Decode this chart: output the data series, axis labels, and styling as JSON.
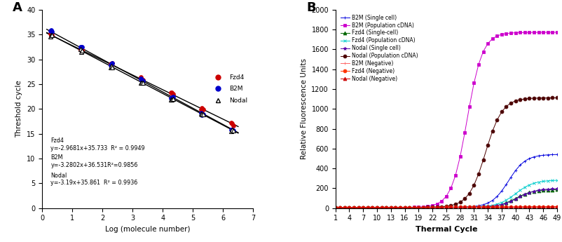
{
  "panel_A": {
    "xlabel": "Log (molecule number)",
    "ylabel": "Threshold cycle",
    "xlim": [
      0,
      7
    ],
    "ylim": [
      0,
      40
    ],
    "xticks": [
      0,
      1,
      2,
      3,
      4,
      5,
      6,
      7
    ],
    "yticks": [
      0,
      5,
      10,
      15,
      20,
      25,
      30,
      35,
      40
    ],
    "slopes": [
      -2.9681,
      -3.2802,
      -3.19
    ],
    "intercepts": [
      35.733,
      36.531,
      35.861
    ],
    "x_data": [
      0.3,
      1.3,
      2.3,
      3.3,
      4.3,
      5.3,
      6.3
    ],
    "marker_colors": [
      "#CC0000",
      "#0000CC",
      "#000000"
    ],
    "marker_styles": [
      "o",
      "o",
      "^"
    ],
    "ann_fzd4": "Fzd4\ny=-2.9681x+35.733  R² = 0.9949",
    "ann_b2m": "B2M\ny=-3.2802x+36.531R²=0.9856",
    "ann_nodal": "Nodal\ny=-3.19x+35.861  R² = 0.9936"
  },
  "panel_B": {
    "xlabel": "Thermal Cycle",
    "ylabel": "Relative Fluorescence Units",
    "ylim": [
      0,
      2000
    ],
    "yticks": [
      0,
      200,
      400,
      600,
      800,
      1000,
      1200,
      1400,
      1600,
      1800,
      2000
    ],
    "xticks": [
      1,
      4,
      7,
      10,
      13,
      16,
      19,
      22,
      25,
      28,
      31,
      34,
      37,
      40,
      43,
      46,
      49
    ],
    "series": [
      {
        "label": "B2M (Single cell)",
        "color": "#0000DD",
        "marker": "+",
        "plateau": 530,
        "ct": 38.5,
        "k": 0.55
      },
      {
        "label": "B2M (Population cDNA)",
        "color": "#CC00CC",
        "marker": "s",
        "plateau": 1760,
        "ct": 29.5,
        "k": 0.6
      },
      {
        "label": "Fzd4 (Single-cell)",
        "color": "#006600",
        "marker": "^",
        "plateau": 175,
        "ct": 40.0,
        "k": 0.55
      },
      {
        "label": "Fzd4 (Population cDNA)",
        "color": "#00CCCC",
        "marker": "x",
        "plateau": 270,
        "ct": 40.0,
        "k": 0.52
      },
      {
        "label": "Nodal (Single cell)",
        "color": "#5500AA",
        "marker": "*",
        "plateau": 185,
        "ct": 40.5,
        "k": 0.52
      },
      {
        "label": "Nodal (Population cDNA)",
        "color": "#4B0000",
        "marker": "o",
        "plateau": 1100,
        "ct": 33.5,
        "k": 0.55
      },
      {
        "label": "B2M (Negative)",
        "color": "#FF6666",
        "marker": "+",
        "plateau": 22,
        "ct": 99,
        "k": 0.3
      },
      {
        "label": "Fzd4 (Negative)",
        "color": "#FF3300",
        "marker": "o",
        "plateau": 18,
        "ct": 99,
        "k": 0.3
      },
      {
        "label": "Nodal (Negative)",
        "color": "#CC0000",
        "marker": "^",
        "plateau": 15,
        "ct": 99,
        "k": 0.3
      }
    ]
  }
}
